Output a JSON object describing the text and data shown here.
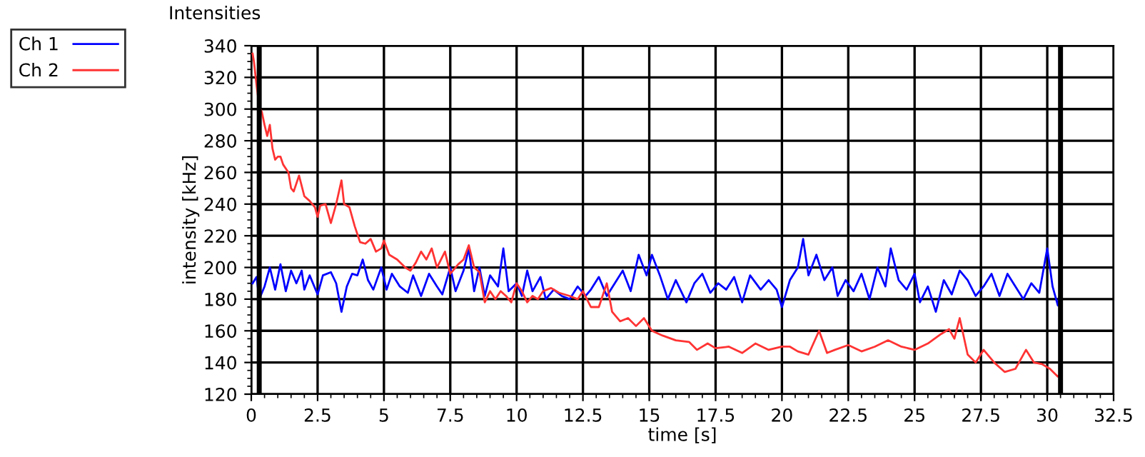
{
  "chart_data": {
    "type": "line",
    "title": "Intensities",
    "xlabel": "time [s]",
    "ylabel": "intensity [kHz]",
    "xlim": [
      0,
      32.5
    ],
    "xticks": [
      0,
      2.5,
      5,
      7.5,
      10,
      12.5,
      15,
      17.5,
      20,
      22.5,
      25,
      27.5,
      30,
      32.5
    ],
    "ylim": [
      120,
      340
    ],
    "yticks": [
      120,
      140,
      160,
      180,
      200,
      220,
      240,
      260,
      280,
      300,
      320,
      340
    ],
    "grid": true,
    "legend": "top left",
    "marker": "none",
    "line_style": "solid",
    "ref_lines": [
      {
        "axis": "x",
        "value": 0.3,
        "color": "#000000"
      },
      {
        "axis": "x",
        "value": 30.5,
        "color": "#000000"
      }
    ],
    "series": [
      {
        "name": "Ch 1",
        "color": "#0000ff",
        "x": [
          0.05,
          0.2,
          0.3,
          0.5,
          0.7,
          0.9,
          1.1,
          1.3,
          1.5,
          1.7,
          1.9,
          2.0,
          2.2,
          2.5,
          2.7,
          3.0,
          3.2,
          3.4,
          3.6,
          3.8,
          4.0,
          4.2,
          4.4,
          4.6,
          4.9,
          5.1,
          5.3,
          5.6,
          5.9,
          6.1,
          6.4,
          6.7,
          7.0,
          7.2,
          7.5,
          7.7,
          8.0,
          8.2,
          8.4,
          8.6,
          8.8,
          9.0,
          9.3,
          9.5,
          9.7,
          10.0,
          10.2,
          10.4,
          10.6,
          10.9,
          11.1,
          11.4,
          11.7,
          12.0,
          12.3,
          12.6,
          12.8,
          13.1,
          13.4,
          13.7,
          14.0,
          14.3,
          14.6,
          14.9,
          15.1,
          15.4,
          15.7,
          16.0,
          16.4,
          16.7,
          17.0,
          17.3,
          17.6,
          17.9,
          18.2,
          18.5,
          18.8,
          19.2,
          19.5,
          19.8,
          20.0,
          20.3,
          20.6,
          20.8,
          21.0,
          21.3,
          21.6,
          21.9,
          22.1,
          22.4,
          22.7,
          23.0,
          23.3,
          23.6,
          23.9,
          24.1,
          24.4,
          24.7,
          25.0,
          25.2,
          25.5,
          25.8,
          26.1,
          26.4,
          26.7,
          27.0,
          27.3,
          27.6,
          27.9,
          28.2,
          28.5,
          28.8,
          29.1,
          29.4,
          29.7,
          30.0,
          30.2,
          30.4,
          30.5
        ],
        "values": [
          190,
          194,
          180,
          188,
          200,
          186,
          202,
          185,
          198,
          190,
          198,
          186,
          195,
          183,
          195,
          197,
          190,
          172,
          188,
          196,
          195,
          205,
          192,
          186,
          200,
          186,
          196,
          188,
          184,
          195,
          182,
          196,
          188,
          183,
          200,
          185,
          198,
          212,
          185,
          200,
          182,
          195,
          188,
          212,
          185,
          190,
          182,
          198,
          185,
          194,
          180,
          186,
          182,
          180,
          188,
          182,
          186,
          194,
          182,
          190,
          198,
          185,
          208,
          195,
          208,
          195,
          180,
          192,
          178,
          190,
          196,
          184,
          190,
          186,
          194,
          178,
          195,
          186,
          192,
          186,
          175,
          192,
          200,
          218,
          195,
          208,
          192,
          200,
          182,
          192,
          185,
          196,
          180,
          200,
          188,
          212,
          192,
          186,
          196,
          178,
          188,
          172,
          192,
          183,
          198,
          192,
          182,
          188,
          196,
          182,
          196,
          188,
          180,
          190,
          184,
          212,
          188,
          176,
          186
        ]
      },
      {
        "name": "Ch 2",
        "color": "#ff3333",
        "x": [
          0.05,
          0.1,
          0.2,
          0.3,
          0.4,
          0.5,
          0.6,
          0.7,
          0.8,
          0.9,
          1.0,
          1.1,
          1.2,
          1.4,
          1.5,
          1.6,
          1.8,
          2.0,
          2.2,
          2.4,
          2.5,
          2.6,
          2.8,
          3.0,
          3.2,
          3.4,
          3.5,
          3.7,
          3.9,
          4.1,
          4.3,
          4.5,
          4.7,
          4.9,
          5.0,
          5.2,
          5.5,
          5.8,
          6.0,
          6.2,
          6.4,
          6.6,
          6.8,
          7.0,
          7.3,
          7.5,
          7.8,
          8.0,
          8.2,
          8.4,
          8.6,
          8.8,
          9.0,
          9.2,
          9.4,
          9.6,
          9.8,
          10.0,
          10.2,
          10.4,
          10.6,
          10.8,
          11.0,
          11.3,
          11.6,
          12.0,
          12.3,
          12.5,
          12.8,
          13.1,
          13.4,
          13.6,
          13.9,
          14.2,
          14.5,
          14.8,
          15.1,
          15.5,
          16.0,
          16.5,
          16.8,
          17.2,
          17.5,
          18.0,
          18.5,
          19.0,
          19.5,
          20.0,
          20.3,
          20.6,
          21.0,
          21.4,
          21.7,
          22.0,
          22.5,
          23.0,
          23.5,
          24.0,
          24.5,
          25.0,
          25.5,
          26.0,
          26.3,
          26.5,
          26.7,
          27.0,
          27.3,
          27.6,
          28.0,
          28.4,
          28.8,
          29.2,
          29.5,
          29.8,
          30.1,
          30.4,
          30.5
        ],
        "values": [
          335,
          330,
          315,
          302,
          298,
          290,
          283,
          290,
          275,
          268,
          270,
          270,
          265,
          260,
          250,
          248,
          258,
          245,
          242,
          238,
          232,
          239,
          240,
          228,
          240,
          255,
          240,
          238,
          226,
          216,
          215,
          218,
          210,
          212,
          217,
          208,
          205,
          200,
          198,
          203,
          210,
          205,
          212,
          200,
          210,
          196,
          202,
          205,
          214,
          200,
          197,
          178,
          185,
          180,
          185,
          182,
          178,
          190,
          185,
          178,
          182,
          180,
          185,
          187,
          184,
          182,
          180,
          185,
          175,
          175,
          190,
          172,
          166,
          168,
          163,
          168,
          160,
          157,
          154,
          153,
          148,
          152,
          149,
          150,
          146,
          152,
          148,
          150,
          150,
          147,
          145,
          160,
          146,
          148,
          151,
          147,
          150,
          154,
          150,
          148,
          152,
          158,
          161,
          155,
          168,
          145,
          140,
          148,
          140,
          134,
          136,
          148,
          140,
          139,
          136,
          131,
          133
        ]
      }
    ]
  }
}
